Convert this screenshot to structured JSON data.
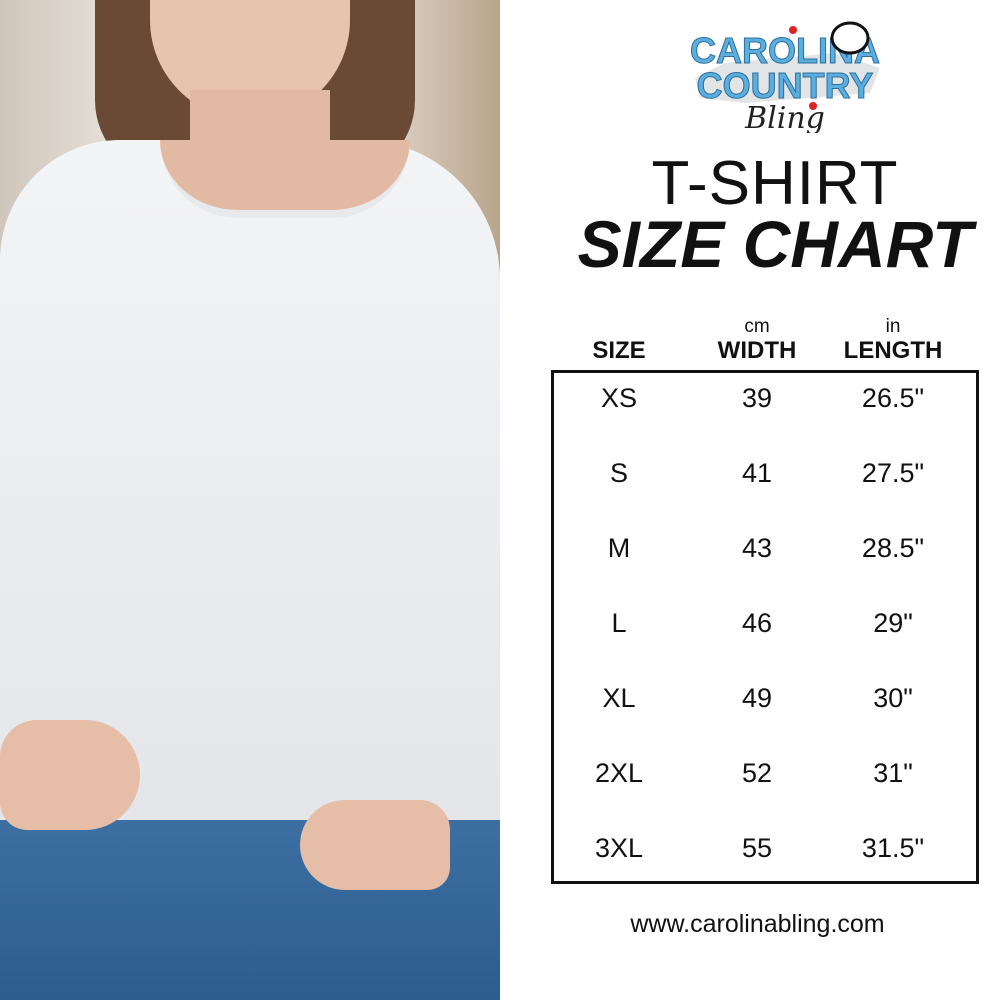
{
  "brand": {
    "logo_text": "Carolina Country Bling",
    "colors": {
      "logo_blue": "#5aaee0",
      "text": "#111111"
    }
  },
  "title": {
    "line1": "T-SHIRT",
    "line2": "SIZE CHART"
  },
  "table": {
    "headers": [
      {
        "label": "SIZE",
        "unit": ""
      },
      {
        "label": "WIDTH",
        "unit": "cm"
      },
      {
        "label": "LENGTH",
        "unit": "in"
      }
    ],
    "rows": [
      [
        "XS",
        "39",
        "26.5\""
      ],
      [
        "S",
        "41",
        "27.5\""
      ],
      [
        "M",
        "43",
        "28.5\""
      ],
      [
        "L",
        "46",
        "29\""
      ],
      [
        "XL",
        "49",
        "30\""
      ],
      [
        "2XL",
        "52",
        "31\""
      ],
      [
        "3XL",
        "55",
        "31.5\""
      ]
    ]
  },
  "footer": {
    "url": "www.carolinabling.com"
  }
}
